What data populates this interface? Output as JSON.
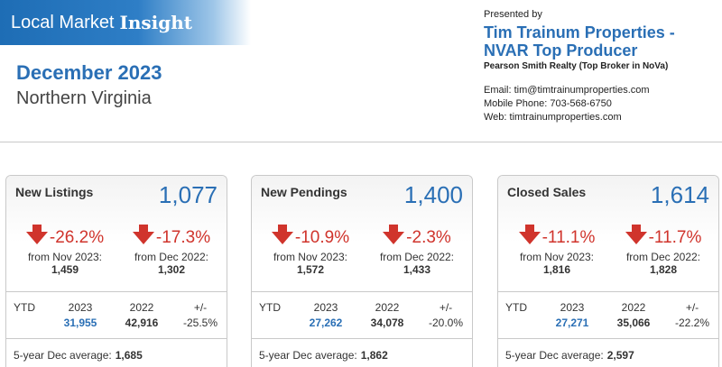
{
  "banner": {
    "part1": "Local Market",
    "part2": "Insight"
  },
  "report": {
    "month": "December 2023",
    "region": "Northern Virginia"
  },
  "presenter": {
    "presented_by": "Presented by",
    "agent_line1": "Tim Trainum Properties -",
    "agent_line2": "NVAR Top Producer",
    "firm": "Pearson Smith Realty (Top Broker in NoVa)",
    "email": "Email: tim@timtrainumproperties.com",
    "phone": "Mobile Phone: 703-568-6750",
    "web": "Web: timtrainumproperties.com"
  },
  "colors": {
    "accent": "#2a6fb5",
    "negative": "#d0342c"
  },
  "cards": [
    {
      "label": "New Listings",
      "total": "1,077",
      "mom_pct": "-26.2%",
      "mom_from": "from Nov 2023:",
      "mom_prev": "1,459",
      "yoy_pct": "-17.3%",
      "yoy_from": "from Dec 2022:",
      "yoy_prev": "1,302",
      "ytd_label": "YTD",
      "y1": "2023",
      "y2": "2022",
      "diff_h": "+/-",
      "ytd_2023": "31,955",
      "ytd_2022": "42,916",
      "ytd_diff": "-25.5%",
      "avg_label": "5-year Dec average:",
      "avg_value": "1,685"
    },
    {
      "label": "New Pendings",
      "total": "1,400",
      "mom_pct": "-10.9%",
      "mom_from": "from Nov 2023:",
      "mom_prev": "1,572",
      "yoy_pct": "-2.3%",
      "yoy_from": "from Dec 2022:",
      "yoy_prev": "1,433",
      "ytd_label": "YTD",
      "y1": "2023",
      "y2": "2022",
      "diff_h": "+/-",
      "ytd_2023": "27,262",
      "ytd_2022": "34,078",
      "ytd_diff": "-20.0%",
      "avg_label": "5-year Dec average:",
      "avg_value": "1,862"
    },
    {
      "label": "Closed Sales",
      "total": "1,614",
      "mom_pct": "-11.1%",
      "mom_from": "from Nov 2023:",
      "mom_prev": "1,816",
      "yoy_pct": "-11.7%",
      "yoy_from": "from Dec 2022:",
      "yoy_prev": "1,828",
      "ytd_label": "YTD",
      "y1": "2023",
      "y2": "2022",
      "diff_h": "+/-",
      "ytd_2023": "27,271",
      "ytd_2022": "35,066",
      "ytd_diff": "-22.2%",
      "avg_label": "5-year Dec average:",
      "avg_value": "2,597"
    }
  ]
}
